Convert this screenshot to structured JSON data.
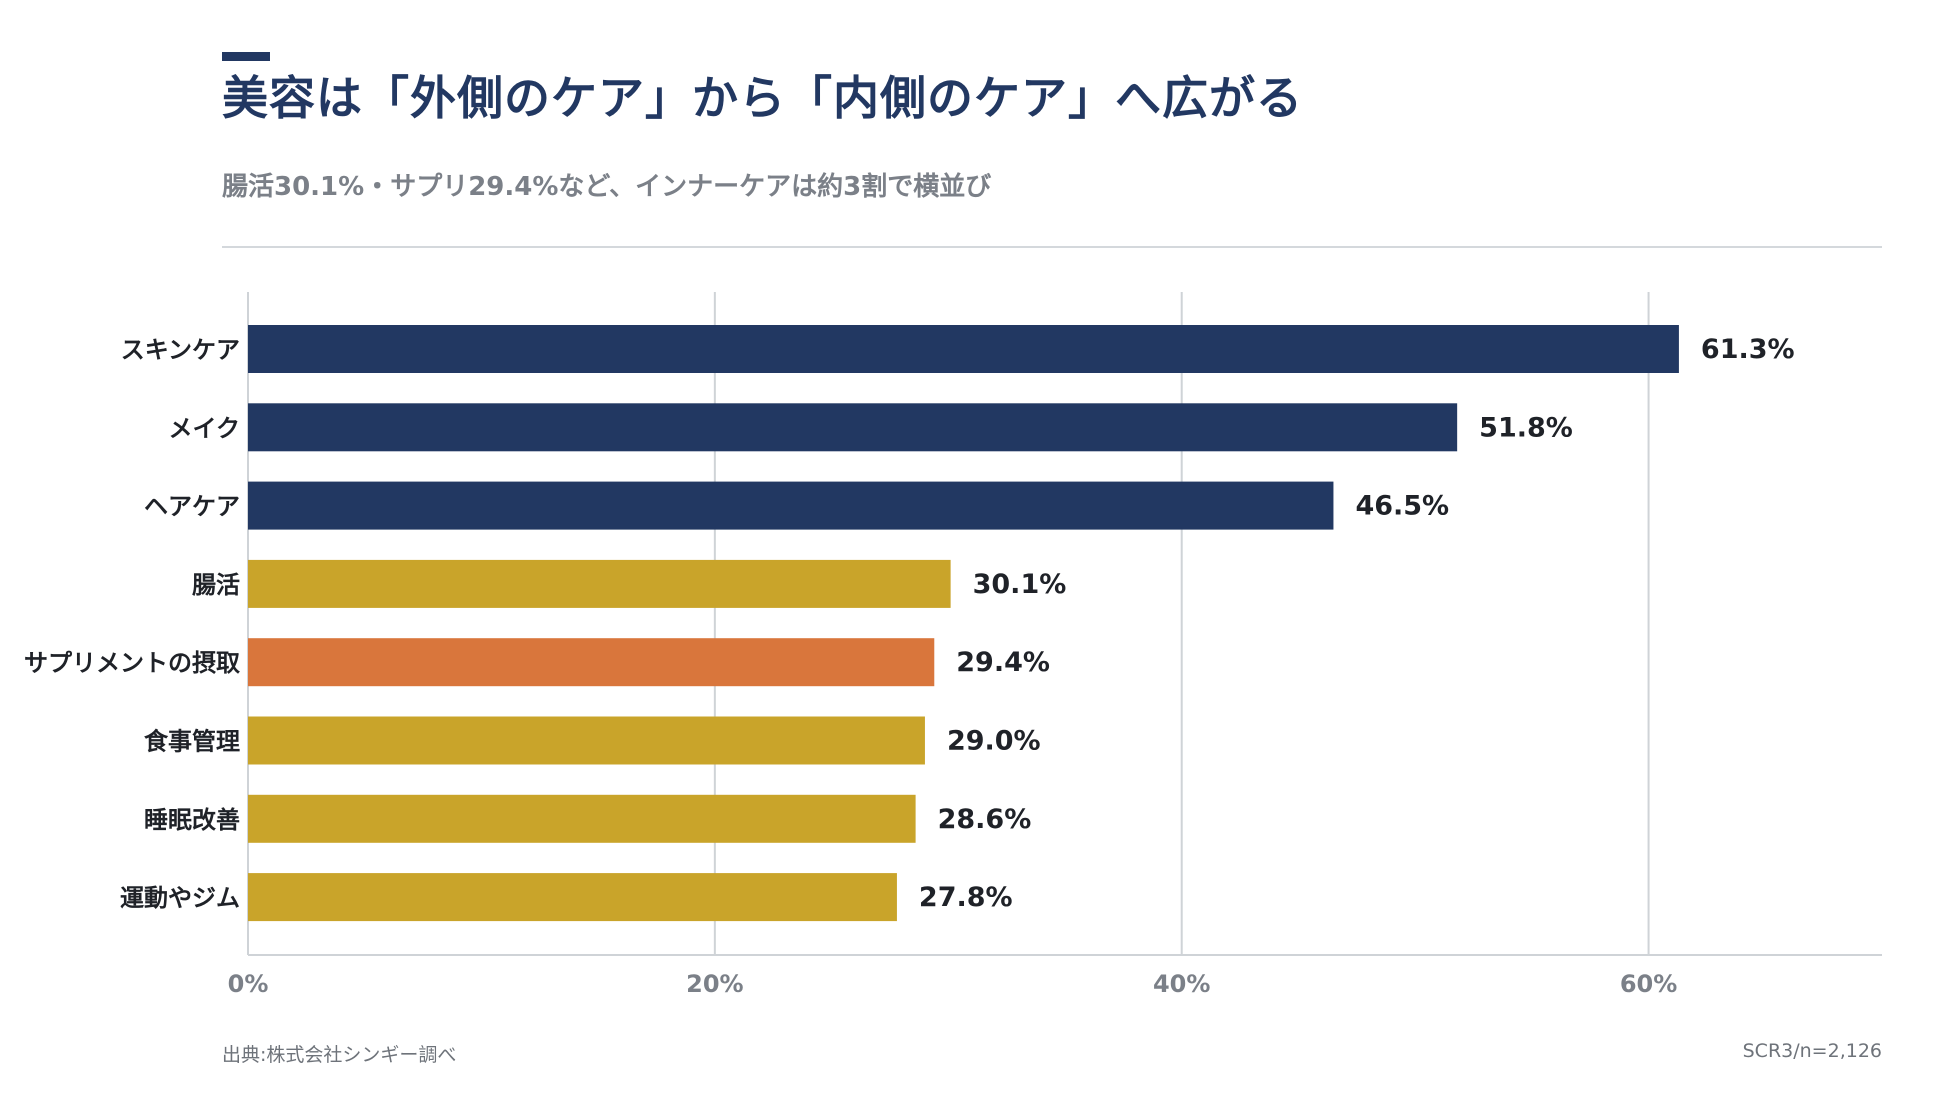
{
  "header": {
    "title": "美容は「外側のケア」から「内側のケア」へ広がる",
    "subtitle": "腸活30.1%・サプリ29.4%など、インナーケアは約3割で横並び"
  },
  "footer": {
    "source": "出典:株式会社シンギー調べ",
    "sample": "SCR3/n=2,126"
  },
  "colors": {
    "navy": "#223862",
    "gold": "#c9a42a",
    "orange": "#d9763c",
    "text": "#1f2228",
    "muted": "#7b8088",
    "grid": "#cfd3d7"
  },
  "chart_data": {
    "type": "bar",
    "orientation": "horizontal",
    "categories": [
      "スキンケア",
      "メイク",
      "ヘアケア",
      "腸活",
      "サプリメントの摂取",
      "食事管理",
      "睡眠改善",
      "運動やジム"
    ],
    "values": [
      61.3,
      51.8,
      46.5,
      30.1,
      29.4,
      29.0,
      28.6,
      27.8
    ],
    "value_labels": [
      "61.3%",
      "51.8%",
      "46.5%",
      "30.1%",
      "29.4%",
      "29.0%",
      "28.6%",
      "27.8%"
    ],
    "bar_colors": [
      "navy",
      "navy",
      "navy",
      "gold",
      "orange",
      "gold",
      "gold",
      "gold"
    ],
    "xlim": [
      0,
      70
    ],
    "xticks": [
      0,
      20,
      40,
      60
    ],
    "xtick_labels": [
      "0%",
      "20%",
      "40%",
      "60%"
    ],
    "grid": true
  }
}
